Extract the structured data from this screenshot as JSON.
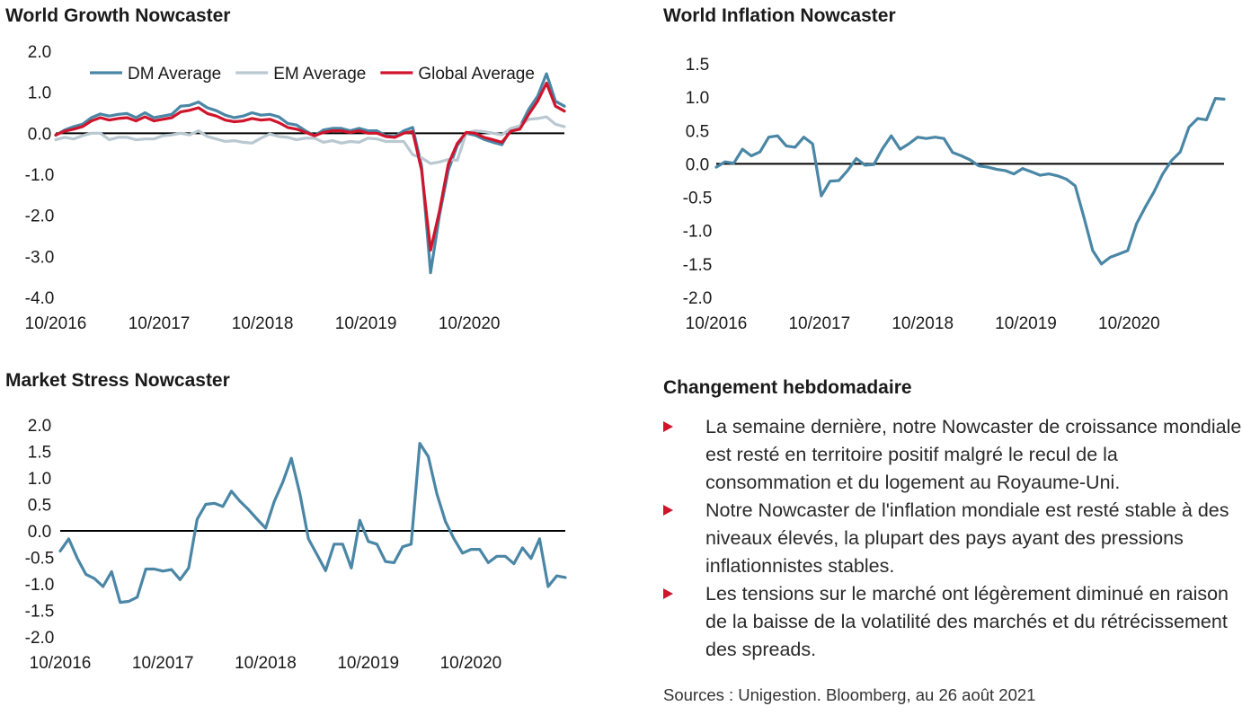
{
  "chart_data": [
    {
      "id": "growth",
      "type": "line",
      "title": "World Growth Nowcaster",
      "ylim": [
        -4.0,
        2.0
      ],
      "yticks": [
        "2.0",
        "1.0",
        "0.0",
        "-1.0",
        "-2.0",
        "-3.0",
        "-4.0"
      ],
      "ytick_values": [
        2,
        1,
        0,
        -1,
        -2,
        -3,
        -4
      ],
      "xticks": [
        "10/2016",
        "10/2017",
        "10/2018",
        "10/2019",
        "10/2020"
      ],
      "xtick_values": [
        2016.75,
        2017.75,
        2018.75,
        2019.75,
        2020.75
      ],
      "xlim": [
        2016.75,
        2021.67
      ],
      "zero_line": true,
      "legend_position": "top",
      "series": [
        {
          "name": "DM Average",
          "color": "#4a86a5",
          "values": [
            -0.05,
            0.08,
            0.16,
            0.22,
            0.38,
            0.47,
            0.42,
            0.46,
            0.48,
            0.38,
            0.5,
            0.38,
            0.42,
            0.46,
            0.66,
            0.68,
            0.76,
            0.62,
            0.55,
            0.44,
            0.38,
            0.42,
            0.5,
            0.44,
            0.46,
            0.4,
            0.24,
            0.2,
            0.06,
            -0.06,
            0.08,
            0.12,
            0.12,
            0.06,
            0.12,
            0.06,
            0.06,
            -0.06,
            -0.08,
            0.06,
            0.14,
            -0.8,
            -3.4,
            -2.0,
            -0.9,
            -0.3,
            0.0,
            -0.05,
            -0.15,
            -0.22,
            -0.28,
            0.1,
            0.15,
            0.58,
            0.9,
            1.45,
            0.78,
            0.66
          ]
        },
        {
          "name": "EM Average",
          "color": "#b9c8d1",
          "values": [
            -0.16,
            -0.1,
            -0.14,
            -0.06,
            0.0,
            0.0,
            -0.16,
            -0.1,
            -0.1,
            -0.16,
            -0.14,
            -0.14,
            -0.06,
            -0.04,
            0.0,
            -0.04,
            0.06,
            -0.08,
            -0.14,
            -0.2,
            -0.18,
            -0.22,
            -0.24,
            -0.12,
            -0.02,
            -0.08,
            -0.1,
            -0.16,
            -0.12,
            -0.12,
            -0.22,
            -0.18,
            -0.24,
            -0.2,
            -0.22,
            -0.12,
            -0.14,
            -0.2,
            -0.2,
            -0.2,
            -0.52,
            -0.6,
            -0.74,
            -0.7,
            -0.64,
            -0.66,
            0.0,
            0.06,
            0.04,
            0.0,
            -0.04,
            0.12,
            0.18,
            0.34,
            0.36,
            0.4,
            0.22,
            0.16
          ]
        },
        {
          "name": "Global Average",
          "color": "#d0142c",
          "values": [
            -0.04,
            0.05,
            0.1,
            0.16,
            0.3,
            0.38,
            0.32,
            0.36,
            0.38,
            0.3,
            0.4,
            0.3,
            0.34,
            0.38,
            0.52,
            0.56,
            0.62,
            0.48,
            0.42,
            0.32,
            0.28,
            0.3,
            0.36,
            0.32,
            0.34,
            0.26,
            0.14,
            0.1,
            0.02,
            -0.06,
            0.02,
            0.06,
            0.06,
            0.02,
            0.06,
            0.0,
            0.0,
            -0.08,
            -0.1,
            0.0,
            0.04,
            -0.9,
            -2.85,
            -1.9,
            -0.75,
            -0.25,
            0.02,
            0.0,
            -0.1,
            -0.16,
            -0.22,
            0.05,
            0.1,
            0.46,
            0.78,
            1.22,
            0.66,
            0.54
          ]
        }
      ]
    },
    {
      "id": "inflation",
      "type": "line",
      "title": "World Inflation Nowcaster",
      "ylim": [
        -2.0,
        1.5
      ],
      "yticks": [
        "1.5",
        "1.0",
        "0.5",
        "0.0",
        "-0.5",
        "-1.0",
        "-1.5",
        "-2.0"
      ],
      "ytick_values": [
        1.5,
        1.0,
        0.5,
        0.0,
        -0.5,
        -1.0,
        -1.5,
        -2.0
      ],
      "xticks": [
        "10/2016",
        "10/2017",
        "10/2018",
        "10/2019",
        "10/2020"
      ],
      "xtick_values": [
        2016.75,
        2017.75,
        2018.75,
        2019.75,
        2020.75
      ],
      "xlim": [
        2016.75,
        2021.67
      ],
      "zero_line": true,
      "series": [
        {
          "name": "",
          "color": "#4a86a5",
          "values": [
            -0.05,
            0.03,
            0.01,
            0.22,
            0.12,
            0.18,
            0.4,
            0.42,
            0.27,
            0.25,
            0.4,
            0.3,
            -0.48,
            -0.26,
            -0.25,
            -0.1,
            0.08,
            -0.02,
            -0.01,
            0.23,
            0.42,
            0.22,
            0.3,
            0.4,
            0.38,
            0.4,
            0.38,
            0.17,
            0.12,
            0.06,
            -0.03,
            -0.05,
            -0.08,
            -0.1,
            -0.15,
            -0.07,
            -0.12,
            -0.17,
            -0.15,
            -0.18,
            -0.23,
            -0.33,
            -0.8,
            -1.3,
            -1.5,
            -1.4,
            -1.35,
            -1.3,
            -0.9,
            -0.65,
            -0.42,
            -0.15,
            0.05,
            0.18,
            0.55,
            0.68,
            0.66,
            0.98,
            0.97
          ]
        }
      ]
    },
    {
      "id": "stress",
      "type": "line",
      "title": "Market Stress Nowcaster",
      "ylim": [
        -2.0,
        2.0
      ],
      "yticks": [
        "2.0",
        "1.5",
        "1.0",
        "0.5",
        "0.0",
        "-0.5",
        "-1.0",
        "-1.5",
        "-2.0"
      ],
      "ytick_values": [
        2.0,
        1.5,
        1.0,
        0.5,
        0.0,
        -0.5,
        -1.0,
        -1.5,
        -2.0
      ],
      "xticks": [
        "10/2016",
        "10/2017",
        "10/2018",
        "10/2019",
        "10/2020"
      ],
      "xtick_values": [
        2016.75,
        2017.75,
        2018.75,
        2019.75,
        2020.75
      ],
      "xlim": [
        2016.75,
        2021.67
      ],
      "zero_line": true,
      "series": [
        {
          "name": "",
          "color": "#4a86a5",
          "values": [
            -0.38,
            -0.15,
            -0.52,
            -0.82,
            -0.9,
            -1.05,
            -0.77,
            -1.35,
            -1.33,
            -1.25,
            -0.72,
            -0.72,
            -0.76,
            -0.73,
            -0.92,
            -0.7,
            0.22,
            0.5,
            0.52,
            0.46,
            0.75,
            0.56,
            0.4,
            0.22,
            0.05,
            0.55,
            0.92,
            1.37,
            0.7,
            -0.15,
            -0.45,
            -0.75,
            -0.25,
            -0.25,
            -0.7,
            0.2,
            -0.2,
            -0.25,
            -0.58,
            -0.6,
            -0.3,
            -0.25,
            1.65,
            1.4,
            0.7,
            0.18,
            -0.15,
            -0.42,
            -0.35,
            -0.35,
            -0.6,
            -0.48,
            -0.48,
            -0.62,
            -0.32,
            -0.52,
            -0.15,
            -1.05,
            -0.85,
            -0.88
          ]
        }
      ]
    }
  ],
  "summary": {
    "title": "Changement hebdomadaire",
    "items": [
      "La semaine dernière, notre Nowcaster de croissance mondiale est resté en territoire positif malgré le recul de la consommation et du logement au Royaume-Uni.",
      "Notre Nowcaster de l'inflation mondiale est resté stable à des niveaux élevés, la plupart des pays ayant des pressions inflationnistes stables.",
      "Les tensions sur le marché ont légèrement diminué en raison de la baisse de la volatilité des marchés et du rétrécissement des spreads."
    ],
    "bullet_color": "#d0142c"
  },
  "sources": "Sources : Unigestion. Bloomberg, au 26 août 2021"
}
